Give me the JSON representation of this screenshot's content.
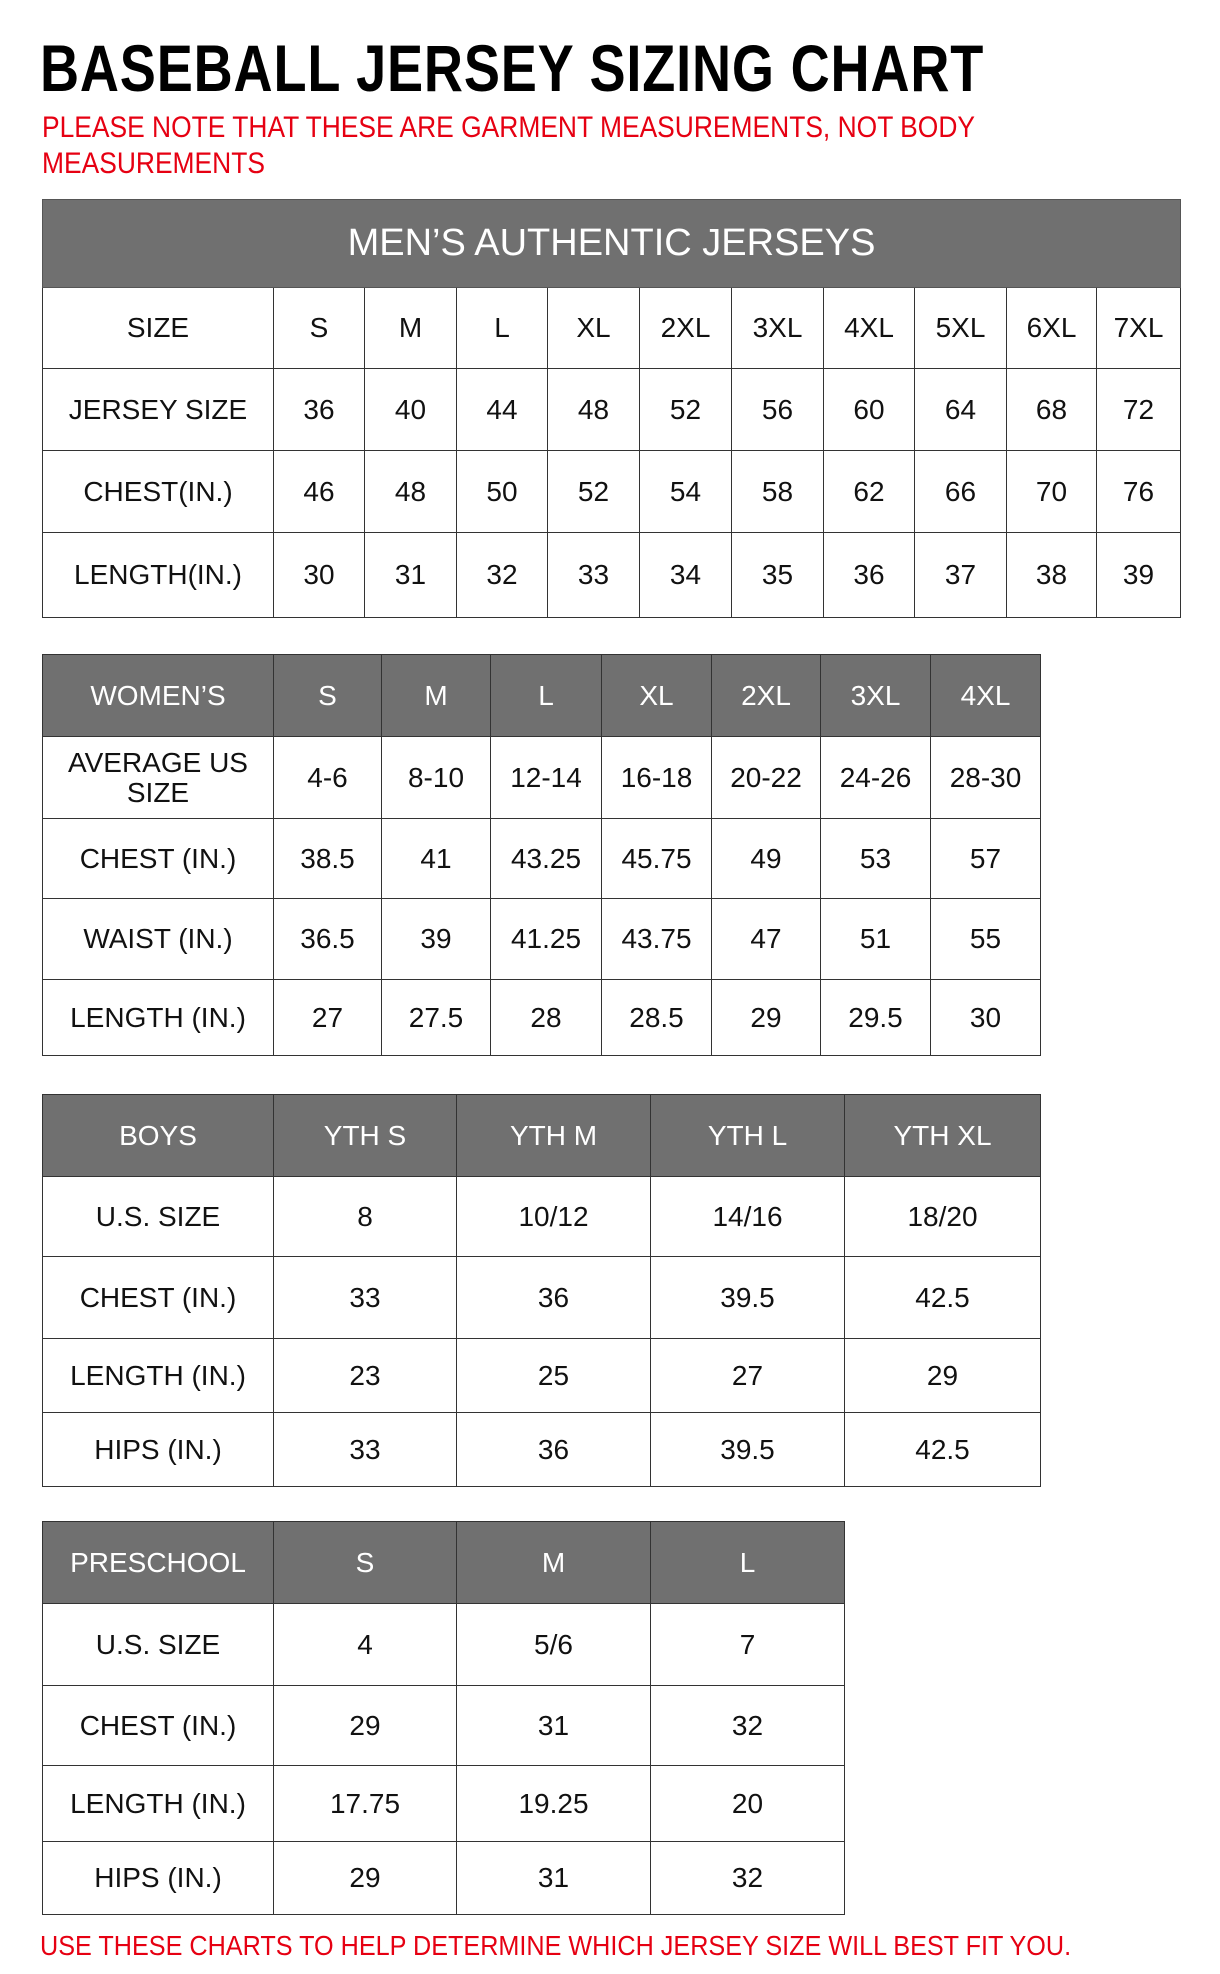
{
  "title": "BASEBALL JERSEY SIZING CHART",
  "note": "PLEASE NOTE THAT THESE ARE GARMENT MEASUREMENTS, NOT BODY MEASUREMENTS",
  "footer": "USE THESE CHARTS TO HELP DETERMINE WHICH JERSEY SIZE WILL BEST FIT YOU.",
  "colors": {
    "header_bg": "#707070",
    "note_red": "#e60012"
  },
  "tables": [
    {
      "banner": "MEN’S AUTHENTIC JERSEYS",
      "header": [
        "SIZE",
        "S",
        "M",
        "L",
        "XL",
        "2XL",
        "3XL",
        "4XL",
        "5XL",
        "6XL",
        "7XL"
      ],
      "header_style": "plain",
      "rows": [
        [
          "JERSEY SIZE",
          "36",
          "40",
          "44",
          "48",
          "52",
          "56",
          "60",
          "64",
          "68",
          "72"
        ],
        [
          "CHEST(IN.)",
          "46",
          "48",
          "50",
          "52",
          "54",
          "58",
          "62",
          "66",
          "70",
          "76"
        ],
        [
          "LENGTH(IN.)",
          "30",
          "31",
          "32",
          "33",
          "34",
          "35",
          "36",
          "37",
          "38",
          "39"
        ]
      ]
    },
    {
      "header": [
        "WOMEN’S",
        "S",
        "M",
        "L",
        "XL",
        "2XL",
        "3XL",
        "4XL"
      ],
      "header_style": "grey",
      "rows": [
        [
          "AVERAGE US SIZE",
          "4-6",
          "8-10",
          "12-14",
          "16-18",
          "20-22",
          "24-26",
          "28-30"
        ],
        [
          "CHEST (IN.)",
          "38.5",
          "41",
          "43.25",
          "45.75",
          "49",
          "53",
          "57"
        ],
        [
          "WAIST (IN.)",
          "36.5",
          "39",
          "41.25",
          "43.75",
          "47",
          "51",
          "55"
        ],
        [
          "LENGTH (IN.)",
          "27",
          "27.5",
          "28",
          "28.5",
          "29",
          "29.5",
          "30"
        ]
      ]
    },
    {
      "header": [
        "BOYS",
        "YTH S",
        "YTH M",
        "YTH L",
        "YTH XL"
      ],
      "header_style": "grey",
      "rows": [
        [
          "U.S. SIZE",
          "8",
          "10/12",
          "14/16",
          "18/20"
        ],
        [
          "CHEST (IN.)",
          "33",
          "36",
          "39.5",
          "42.5"
        ],
        [
          "LENGTH (IN.)",
          "23",
          "25",
          "27",
          "29"
        ],
        [
          "HIPS (IN.)",
          "33",
          "36",
          "39.5",
          "42.5"
        ]
      ]
    },
    {
      "header": [
        "PRESCHOOL",
        "S",
        "M",
        "L"
      ],
      "header_style": "grey",
      "rows": [
        [
          "U.S. SIZE",
          "4",
          "5/6",
          "7"
        ],
        [
          "CHEST (IN.)",
          "29",
          "31",
          "32"
        ],
        [
          "LENGTH (IN.)",
          "17.75",
          "19.25",
          "20"
        ],
        [
          "HIPS (IN.)",
          "29",
          "31",
          "32"
        ]
      ]
    }
  ]
}
